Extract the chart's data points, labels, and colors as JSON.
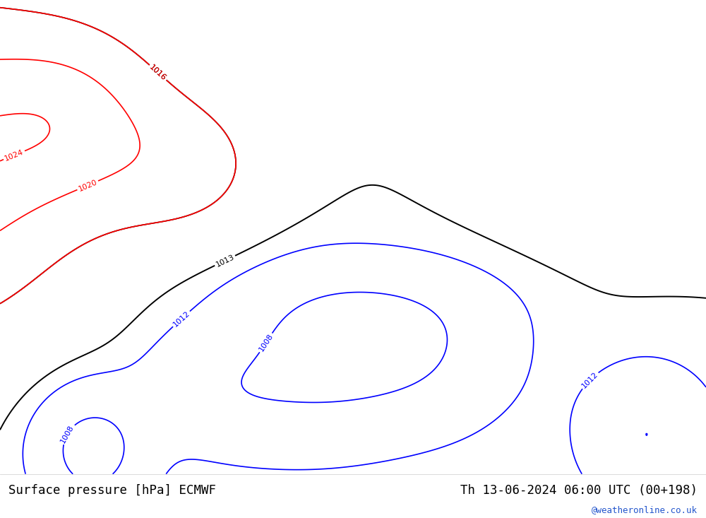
{
  "title_left": "Surface pressure [hPa] ECMWF",
  "title_right": "Th 13-06-2024 06:00 UTC (00+198)",
  "watermark": "@weatheronline.co.uk",
  "land_color": "#b5e085",
  "sea_color": "#c8c8c8",
  "border_color": "#909090",
  "coastline_color": "#606060",
  "bottom_bg": "#ffffff",
  "title_fontsize": 12.5,
  "watermark_fontsize": 9,
  "fig_width": 10.0,
  "fig_height": 7.33,
  "dpi": 100,
  "lon_min": -11.0,
  "lon_max": 42.5,
  "lat_min": 27.5,
  "lat_max": 57.5
}
